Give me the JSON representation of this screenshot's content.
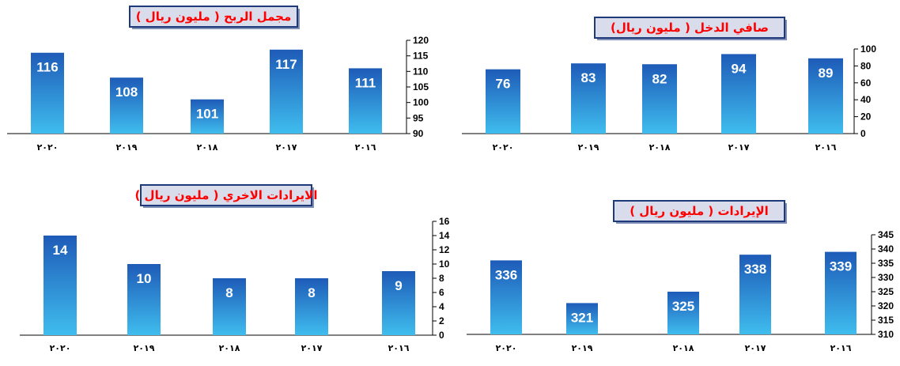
{
  "colors": {
    "bar_top": "#1e5bb8",
    "bar_bottom": "#3fbdee",
    "title_text": "#ff0000",
    "title_border": "#1f3a7a",
    "title_fill": "#d9dcea"
  },
  "chart_data": [
    {
      "type": "bar",
      "title": "صافي الدخل ( مليون ريال)",
      "categories": [
        "٢٠١٦",
        "٢٠١٧",
        "٢٠١٨",
        "٢٠١٩",
        "٢٠٢٠"
      ],
      "values": [
        89,
        94,
        82,
        83,
        76
      ],
      "data_labels": [
        "89",
        "94",
        "82",
        "83",
        "76"
      ],
      "ylim": [
        0,
        100
      ],
      "yticks": [
        "0",
        "20",
        "40",
        "60",
        "80",
        "100"
      ],
      "axis_side": "right",
      "grid": false,
      "legend": "none"
    },
    {
      "type": "bar",
      "title": "مجمل الربح ( مليون ريال )",
      "categories": [
        "٢٠١٦",
        "٢٠١٧",
        "٢٠١٨",
        "٢٠١٩",
        "٢٠٢٠"
      ],
      "values": [
        111,
        117,
        101,
        108,
        116
      ],
      "data_labels": [
        "111",
        "117",
        "101",
        "108",
        "116"
      ],
      "ylim": [
        90,
        120
      ],
      "yticks": [
        "90",
        "95",
        "100",
        "105",
        "110",
        "115",
        "120"
      ],
      "axis_side": "right",
      "grid": false,
      "legend": "none"
    },
    {
      "type": "bar",
      "title": "الإيرادات ( مليون ريال )",
      "categories": [
        "٢٠١٦",
        "٢٠١٧",
        "٢٠١٨",
        "٢٠١٩",
        "٢٠٢٠"
      ],
      "values": [
        339,
        338,
        325,
        321,
        336
      ],
      "data_labels": [
        "339",
        "338",
        "325",
        "321",
        "336"
      ],
      "ylim": [
        310,
        345
      ],
      "yticks": [
        "310",
        "315",
        "320",
        "325",
        "330",
        "335",
        "340",
        "345"
      ],
      "axis_side": "right",
      "grid": false,
      "legend": "none"
    },
    {
      "type": "bar",
      "title": "الايرادات الاخري ( مليون ريال )",
      "categories": [
        "٢٠١٦",
        "٢٠١٧",
        "٢٠١٨",
        "٢٠١٩",
        "٢٠٢٠"
      ],
      "values": [
        9,
        8,
        8,
        10,
        14
      ],
      "data_labels": [
        "9",
        "8",
        "8",
        "10",
        "14"
      ],
      "ylim": [
        0,
        16
      ],
      "yticks": [
        "0",
        "2",
        "4",
        "6",
        "8",
        "10",
        "12",
        "14",
        "16"
      ],
      "axis_side": "right",
      "grid": false,
      "legend": "none"
    }
  ]
}
